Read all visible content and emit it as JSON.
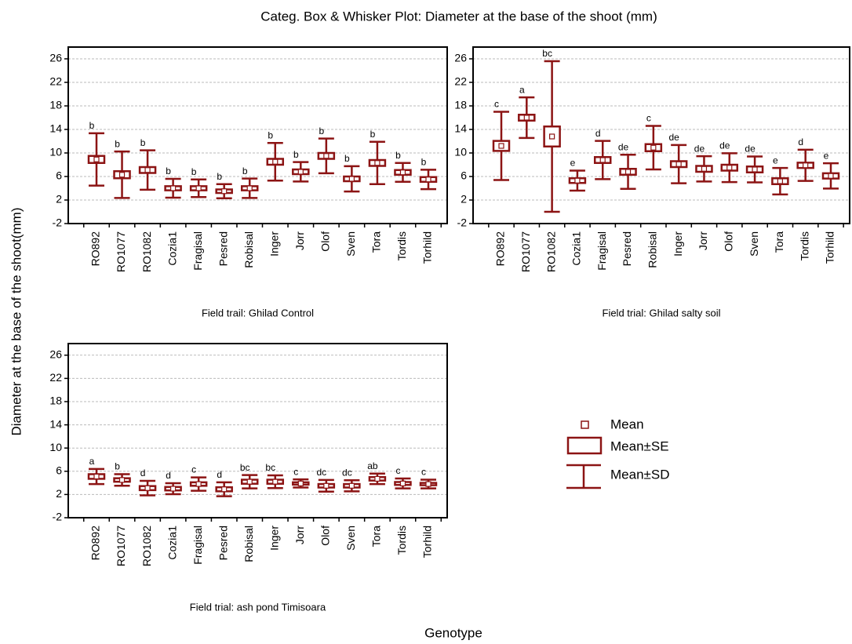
{
  "title": "Categ. Box & Whisker Plot: Diameter at the base of the shoot (mm)",
  "ylabel": "Diameter at the base of the shoot(mm)",
  "xlabel": "Genotype",
  "legend": [
    "Mean",
    "Mean±SE",
    "Mean±SD"
  ],
  "chart_data": [
    {
      "type": "box",
      "subtitle": "Field trail: Ghilad Control",
      "color": "#8c1414",
      "categories": [
        "RO892",
        "RO1077",
        "RO1082",
        "Cozia1",
        "Fragisal",
        "Pesred",
        "Robisal",
        "Inger",
        "Jorr",
        "Olof",
        "Sven",
        "Tora",
        "Tordis",
        "Torhild"
      ],
      "mean": [
        8.9,
        6.3,
        7.1,
        4.0,
        4.0,
        3.5,
        4.0,
        8.5,
        6.8,
        9.5,
        5.6,
        8.3,
        6.7,
        5.5
      ],
      "se": [
        0.6,
        0.6,
        0.5,
        0.35,
        0.35,
        0.3,
        0.35,
        0.5,
        0.4,
        0.5,
        0.4,
        0.5,
        0.4,
        0.4
      ],
      "sd": [
        4.45,
        3.95,
        3.35,
        1.6,
        1.5,
        1.2,
        1.65,
        3.2,
        1.65,
        2.95,
        2.15,
        3.6,
        1.6,
        1.65
      ],
      "letters": [
        "b",
        "b",
        "b",
        "b",
        "b",
        "b",
        "b",
        "b",
        "b",
        "b",
        "b",
        "b",
        "b",
        "b"
      ],
      "ylim": [
        -2,
        28
      ],
      "yticks": [
        -2,
        2,
        6,
        10,
        14,
        18,
        22,
        26
      ],
      "grid": true
    },
    {
      "type": "box",
      "subtitle": "Field trial: Ghilad salty soil",
      "color": "#8c1414",
      "categories": [
        "RO892",
        "RO1077",
        "RO1082",
        "Cozia1",
        "Fragisal",
        "Pesred",
        "Robisal",
        "Inger",
        "Jorr",
        "Olof",
        "Sven",
        "Tora",
        "Tordis",
        "Torhild"
      ],
      "mean": [
        11.2,
        16.0,
        12.8,
        5.3,
        8.8,
        6.8,
        10.9,
        8.1,
        7.3,
        7.5,
        7.2,
        5.2,
        7.9,
        6.1
      ],
      "se": [
        0.85,
        0.5,
        1.7,
        0.4,
        0.5,
        0.5,
        0.6,
        0.5,
        0.5,
        0.5,
        0.5,
        0.5,
        0.45,
        0.45
      ],
      "sd": [
        5.8,
        3.45,
        12.8,
        1.7,
        3.25,
        2.9,
        3.7,
        3.25,
        2.15,
        2.45,
        2.2,
        2.25,
        2.65,
        2.15
      ],
      "letters": [
        "c",
        "a",
        "bc",
        "e",
        "d",
        "de",
        "c",
        "de",
        "de",
        "de",
        "de",
        "e",
        "d",
        "e"
      ],
      "ylim": [
        -2,
        28
      ],
      "yticks": [
        -2,
        2,
        6,
        10,
        14,
        18,
        22,
        26
      ],
      "grid": true
    },
    {
      "type": "box",
      "subtitle": "Field trial: ash pond Timisoara",
      "color": "#8c1414",
      "categories": [
        "RO892",
        "RO1077",
        "RO1082",
        "Cozia1",
        "Fragisal",
        "Pesred",
        "Robisal",
        "Inger",
        "Jorr",
        "Olof",
        "Sven",
        "Tora",
        "Tordis",
        "Torhild"
      ],
      "mean": [
        5.1,
        4.5,
        3.1,
        3.0,
        3.8,
        2.9,
        4.2,
        4.2,
        3.9,
        3.5,
        3.5,
        4.7,
        3.9,
        3.8
      ],
      "se": [
        0.4,
        0.3,
        0.35,
        0.3,
        0.3,
        0.35,
        0.35,
        0.35,
        0.2,
        0.3,
        0.3,
        0.3,
        0.25,
        0.2
      ],
      "sd": [
        1.3,
        1.0,
        1.25,
        0.95,
        1.15,
        1.2,
        1.15,
        1.1,
        0.7,
        1.0,
        0.95,
        0.9,
        0.85,
        0.75
      ],
      "letters": [
        "a",
        "b",
        "d",
        "d",
        "c",
        "d",
        "bc",
        "bc",
        "c",
        "dc",
        "dc",
        "ab",
        "c",
        "c"
      ],
      "ylim": [
        -2,
        28
      ],
      "yticks": [
        -2,
        2,
        6,
        10,
        14,
        18,
        22,
        26
      ],
      "grid": true
    }
  ]
}
